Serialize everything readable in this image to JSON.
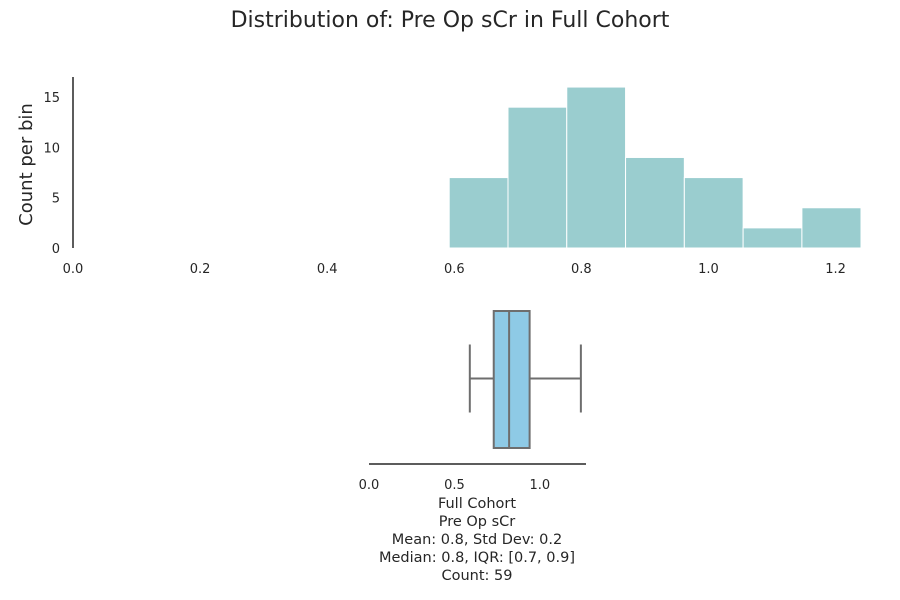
{
  "title": "Distribution of: Pre Op sCr in Full Cohort",
  "colors": {
    "histogram_fill": "#9acdcf",
    "histogram_edge": "#ffffff",
    "box_fill": "#8ecae6",
    "box_line": "#6e6e6e",
    "axis": "#262626"
  },
  "chart_data": [
    {
      "type": "bar",
      "subtype": "histogram",
      "ylabel": "Count per bin",
      "xlabel": "",
      "xlim": [
        0.0,
        1.24
      ],
      "ylim": [
        0,
        17
      ],
      "bin_edges": [
        0.592,
        0.6845,
        0.777,
        0.8695,
        0.962,
        1.0545,
        1.147,
        1.24
      ],
      "values": [
        7,
        14,
        16,
        9,
        7,
        2,
        4
      ],
      "xticks": [
        "0.0",
        "0.2",
        "0.4",
        "0.6",
        "0.8",
        "1.0",
        "1.2"
      ],
      "xtick_values": [
        0.0,
        0.2,
        0.4,
        0.6,
        0.8,
        1.0,
        1.2
      ],
      "yticks": [
        "0",
        "5",
        "10",
        "15"
      ],
      "ytick_values": [
        0,
        5,
        10,
        15
      ],
      "grid": false
    },
    {
      "type": "box",
      "orientation": "horizontal",
      "whisker_low": 0.59,
      "q1": 0.73,
      "median": 0.82,
      "q3": 0.94,
      "whisker_high": 1.24,
      "xlim": [
        0.0,
        1.27
      ],
      "xticks": [
        "0.0",
        "0.5",
        "1.0"
      ],
      "xtick_values": [
        0.0,
        0.5,
        1.0
      ],
      "caption": [
        "Full Cohort",
        "Pre Op sCr",
        "Mean: 0.8, Std Dev: 0.2",
        "Median: 0.8, IQR: [0.7, 0.9]",
        "Count: 59"
      ]
    }
  ]
}
